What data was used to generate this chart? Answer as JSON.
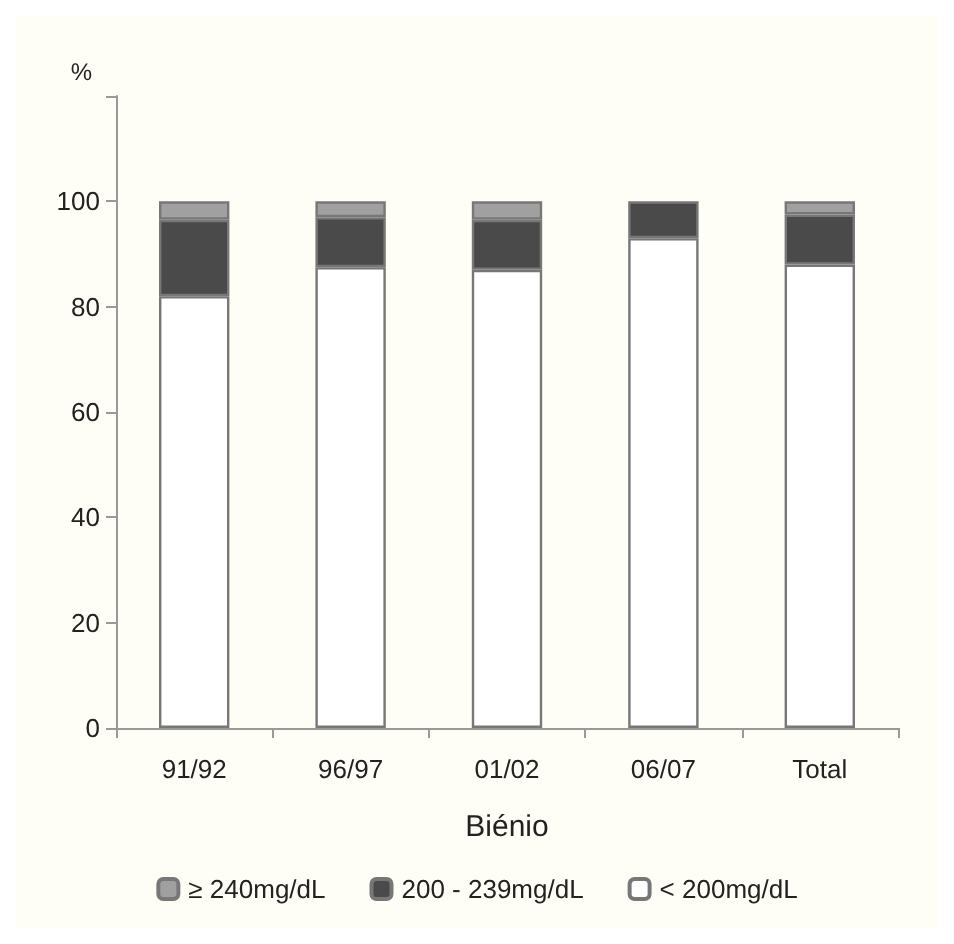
{
  "chart_data": {
    "type": "bar",
    "stacked": true,
    "ylabel": "%",
    "xlabel": "Biénio",
    "categories": [
      "91/92",
      "96/97",
      "01/02",
      "06/07",
      "Total"
    ],
    "series": [
      {
        "name": "< 200mg/dL",
        "color": "#ffffff",
        "values": [
          82,
          87.5,
          87,
          93,
          88
        ]
      },
      {
        "name": "200 - 239mg/dL",
        "color": "#4a4a4a",
        "values": [
          14.5,
          9.5,
          9.5,
          7,
          9.5
        ]
      },
      {
        "name": "≥ 240mg/dL",
        "color": "#a0a0a0",
        "values": [
          3.5,
          3,
          3.5,
          null,
          2.5
        ]
      }
    ],
    "ylim": [
      0,
      120
    ],
    "yticks": [
      0,
      20,
      40,
      60,
      80,
      100,
      {
        "value": 120,
        "label": null
      }
    ],
    "grid": false,
    "legend": "bottom"
  }
}
